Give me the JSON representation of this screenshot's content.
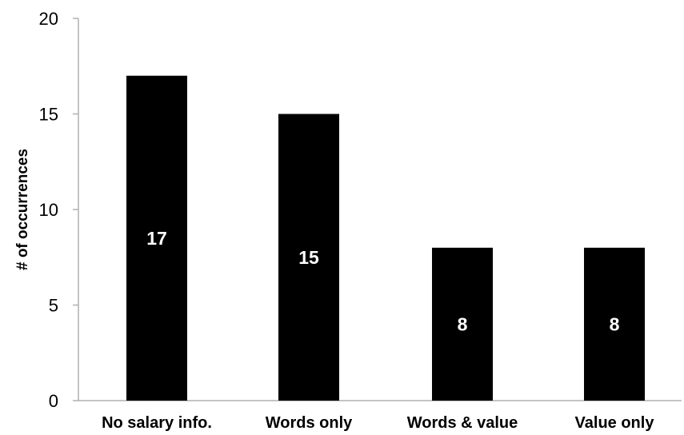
{
  "chart_data": {
    "type": "bar",
    "categories": [
      "No salary info.",
      "Words only",
      "Words & value",
      "Value only"
    ],
    "values": [
      17,
      15,
      8,
      8
    ],
    "data_labels": [
      "17",
      "15",
      "8",
      "8"
    ],
    "title": "",
    "xlabel": "",
    "ylabel": "# of occurrences",
    "ylim": [
      0,
      20
    ],
    "yticks": [
      0,
      5,
      10,
      15,
      20
    ],
    "ytick_labels": [
      "0",
      "5",
      "10",
      "15",
      "20"
    ],
    "grid": false,
    "legend": "none",
    "colors": {
      "bar": "#000000",
      "data_label": "#ffffff",
      "axis": "#b0b0b0"
    }
  }
}
